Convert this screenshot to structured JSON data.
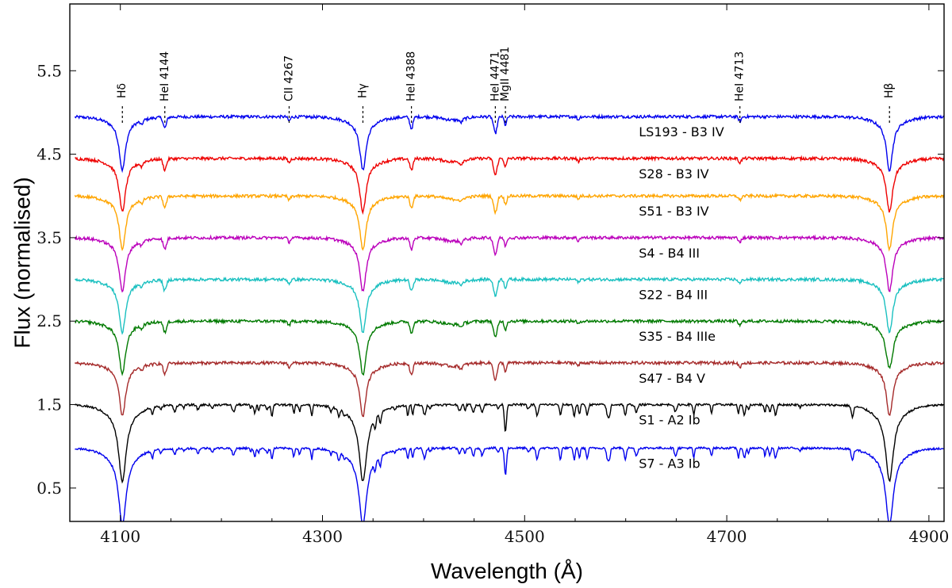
{
  "chart_data": {
    "type": "line",
    "xlabel": "Wavelength (Å)",
    "ylabel": "Flux (normalised)",
    "xlim": [
      4050,
      4915
    ],
    "ylim": [
      0.1,
      6.3
    ],
    "xticks": [
      4100,
      4300,
      4500,
      4700,
      4900
    ],
    "xtick_labels": [
      "4100",
      "4300",
      "4500",
      "4700",
      "4900"
    ],
    "yticks": [
      0.5,
      1.5,
      2.5,
      3.5,
      4.5,
      5.5
    ],
    "ytick_labels": [
      "0.5",
      "1.5",
      "2.5",
      "3.5",
      "4.5",
      "5.5"
    ],
    "line_ids": [
      {
        "wavelength": 4102,
        "label": "Hδ",
        "kind": "balmer"
      },
      {
        "wavelength": 4144,
        "label": "HeI 4144",
        "kind": "metal"
      },
      {
        "wavelength": 4267,
        "label": "CII 4267",
        "kind": "metal"
      },
      {
        "wavelength": 4340,
        "label": "Hγ",
        "kind": "balmer"
      },
      {
        "wavelength": 4388,
        "label": "HeI 4388",
        "kind": "metal"
      },
      {
        "wavelength": 4471,
        "label": "HeI 4471",
        "kind": "metal"
      },
      {
        "wavelength": 4481,
        "label": "MgII 4481",
        "kind": "metal"
      },
      {
        "wavelength": 4713,
        "label": "HeI 4713",
        "kind": "metal"
      },
      {
        "wavelength": 4861,
        "label": "Hβ",
        "kind": "balmer"
      }
    ],
    "series": [
      {
        "name": "LS193 - B3 IV",
        "offset": 4.95,
        "color": "#0000ee",
        "type": "B"
      },
      {
        "name": "S28 - B3 IV",
        "offset": 4.45,
        "color": "#ee0000",
        "type": "B"
      },
      {
        "name": "S51 - B3 IV",
        "offset": 4.0,
        "color": "#ffa500",
        "type": "B"
      },
      {
        "name": "S4 - B4 III",
        "offset": 3.5,
        "color": "#bb00bb",
        "type": "B"
      },
      {
        "name": "S22 - B4 III",
        "offset": 3.0,
        "color": "#1ac0c0",
        "type": "B"
      },
      {
        "name": "S35 - B4 IIIe",
        "offset": 2.5,
        "color": "#007a00",
        "type": "Be"
      },
      {
        "name": "S47 - B4 V",
        "offset": 2.0,
        "color": "#a52a2a",
        "type": "B"
      },
      {
        "name": "S1 - A2 Ib",
        "offset": 1.5,
        "color": "#000000",
        "type": "A"
      },
      {
        "name": "S7 - A3 Ib",
        "offset": 0.98,
        "color": "#0000ee",
        "type": "A"
      }
    ]
  }
}
